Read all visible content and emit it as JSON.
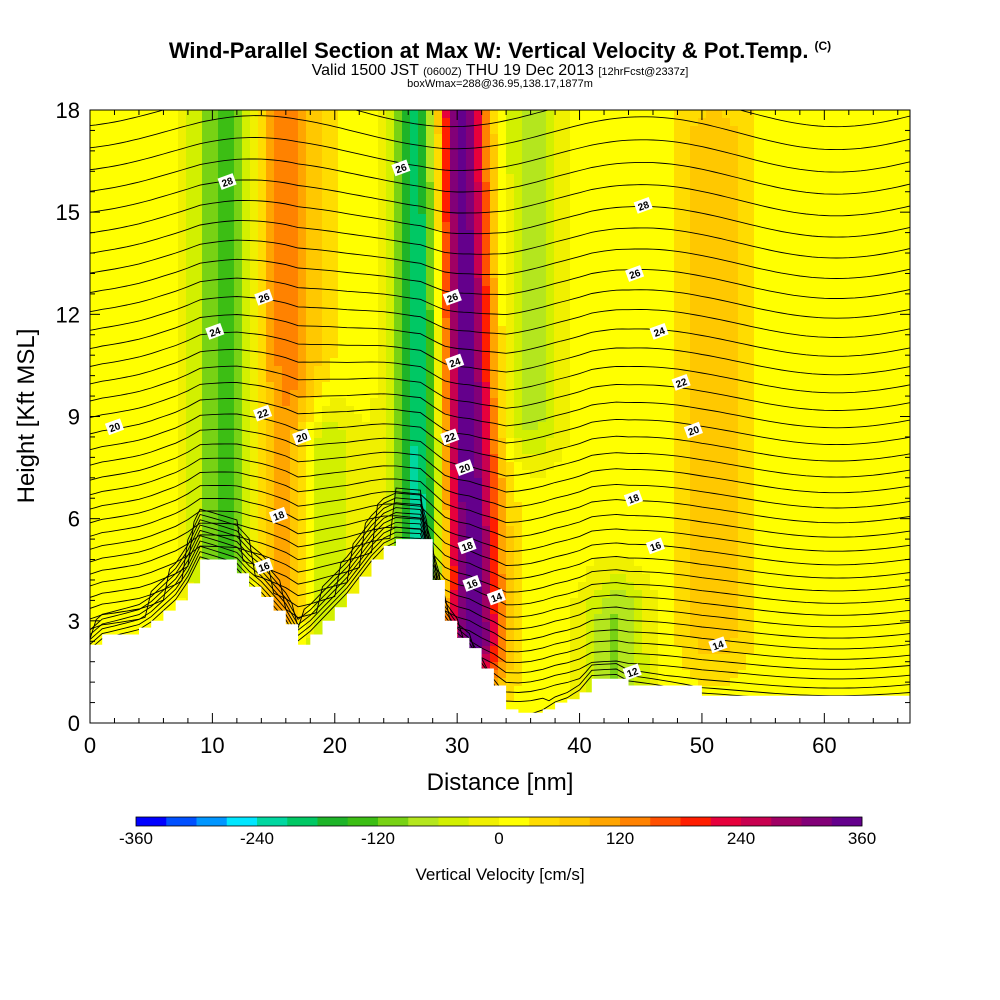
{
  "header": {
    "title": "Wind-Parallel Section at Max W: Vertical Velocity & Pot.Temp.",
    "copyright": "(C)",
    "valid_prefix": "Valid 1500 JST",
    "valid_zulu": "(0600Z)",
    "valid_date": "THU 19 Dec 2013",
    "forecast": "[12hrFcst@2337z]",
    "box_info": "boxWmax=288@36.95,138.17,1877m"
  },
  "chart_data": {
    "type": "heatmap",
    "xlabel": "Distance [nm]",
    "ylabel": "Height [Kft MSL]",
    "xlim": [
      0,
      67
    ],
    "ylim": [
      0,
      18
    ],
    "xticks": [
      0,
      10,
      20,
      30,
      40,
      50,
      60
    ],
    "yticks": [
      0,
      3,
      6,
      9,
      12,
      15,
      18
    ],
    "colorbar": {
      "label": "Vertical Velocity [cm/s]",
      "ticks": [
        -360,
        -240,
        -120,
        0,
        120,
        240,
        360
      ],
      "levels": [
        -360,
        -330,
        -300,
        -270,
        -240,
        -210,
        -180,
        -150,
        -120,
        -90,
        -60,
        -30,
        0,
        30,
        60,
        90,
        120,
        150,
        180,
        210,
        240,
        270,
        300,
        330,
        360
      ],
      "colors": [
        "#0000ff",
        "#0050ff",
        "#0096ff",
        "#00e6ff",
        "#00d7a0",
        "#00c864",
        "#1eb428",
        "#3cbe14",
        "#78d214",
        "#b4e61e",
        "#d2f000",
        "#f0f000",
        "#ffff00",
        "#ffdc00",
        "#ffc800",
        "#ffa500",
        "#ff8200",
        "#ff5000",
        "#ff1e00",
        "#e6003c",
        "#c80050",
        "#a00064",
        "#820078",
        "#64008c"
      ]
    },
    "terrain_profile": {
      "x": [
        0,
        1,
        4,
        5,
        6,
        7,
        8,
        9,
        12,
        13,
        14,
        15,
        16,
        17,
        18,
        19,
        20,
        21,
        22,
        23,
        24,
        25,
        26,
        27,
        28,
        29,
        30,
        31,
        32,
        33,
        34,
        35,
        36,
        37,
        38,
        39,
        40,
        41,
        42,
        43,
        44,
        50,
        51,
        67
      ],
      "y": [
        2.3,
        2.6,
        2.8,
        3.0,
        3.3,
        3.6,
        4.1,
        4.8,
        4.4,
        4.0,
        3.7,
        3.3,
        2.9,
        2.3,
        2.6,
        3.0,
        3.4,
        3.8,
        4.3,
        4.8,
        5.2,
        5.4,
        5.4,
        5.4,
        4.2,
        3.0,
        2.5,
        2.2,
        1.6,
        1.1,
        0.4,
        0.3,
        0.3,
        0.4,
        0.6,
        0.7,
        0.9,
        1.3,
        1.3,
        1.3,
        1.1,
        0.8,
        0.8,
        0.8
      ]
    },
    "velocity_features": [
      {
        "x": 11,
        "y_range": [
          4.5,
          18
        ],
        "value": -150
      },
      {
        "x": 16,
        "y_range": [
          3.5,
          18
        ],
        "value": 120
      },
      {
        "x": 19,
        "y_range": [
          2.5,
          8
        ],
        "value": -100
      },
      {
        "x": 27,
        "y_range": [
          4.5,
          18
        ],
        "value": -250
      },
      {
        "x": 31,
        "y_range": [
          2.5,
          18
        ],
        "value": 360
      },
      {
        "x": 36,
        "y_range": [
          9,
          18
        ],
        "value": -90
      },
      {
        "x": 43,
        "y_range": [
          0.5,
          3
        ],
        "value": -110
      },
      {
        "x": 51,
        "y_range": [
          3,
          17
        ],
        "value": 70
      }
    ],
    "isotherm_labels": [
      {
        "text": "12",
        "x": 44.3,
        "y": 1.5
      },
      {
        "text": "14",
        "x": 33.2,
        "y": 3.7
      },
      {
        "text": "14",
        "x": 51.3,
        "y": 2.3
      },
      {
        "text": "16",
        "x": 14.2,
        "y": 4.6
      },
      {
        "text": "16",
        "x": 31.2,
        "y": 4.1
      },
      {
        "text": "16",
        "x": 46.2,
        "y": 5.2
      },
      {
        "text": "18",
        "x": 15.4,
        "y": 6.1
      },
      {
        "text": "18",
        "x": 30.8,
        "y": 5.2
      },
      {
        "text": "18",
        "x": 44.4,
        "y": 6.6
      },
      {
        "text": "20",
        "x": 2.0,
        "y": 8.7
      },
      {
        "text": "20",
        "x": 17.3,
        "y": 8.4
      },
      {
        "text": "20",
        "x": 30.6,
        "y": 7.5
      },
      {
        "text": "20",
        "x": 49.3,
        "y": 8.6
      },
      {
        "text": "22",
        "x": 14.1,
        "y": 9.1
      },
      {
        "text": "22",
        "x": 29.4,
        "y": 8.4
      },
      {
        "text": "22",
        "x": 48.3,
        "y": 10.0
      },
      {
        "text": "24",
        "x": 10.2,
        "y": 11.5
      },
      {
        "text": "24",
        "x": 29.8,
        "y": 10.6
      },
      {
        "text": "24",
        "x": 46.5,
        "y": 11.5
      },
      {
        "text": "26",
        "x": 14.2,
        "y": 12.5
      },
      {
        "text": "26",
        "x": 29.6,
        "y": 12.5
      },
      {
        "text": "26",
        "x": 44.5,
        "y": 13.2
      },
      {
        "text": "26",
        "x": 25.4,
        "y": 16.3
      },
      {
        "text": "28",
        "x": 11.2,
        "y": 15.9
      },
      {
        "text": "28",
        "x": 45.2,
        "y": 15.2
      }
    ]
  }
}
